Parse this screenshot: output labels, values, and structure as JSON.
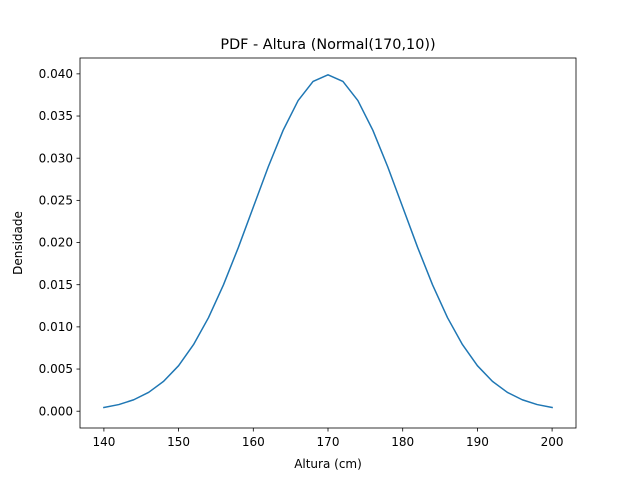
{
  "chart_data": {
    "type": "line",
    "title": "PDF - Altura (Normal(170,10))",
    "xlabel": "Altura (cm)",
    "ylabel": "Densidade",
    "xlim": [
      136.8,
      203.2
    ],
    "ylim": [
      -0.00199,
      0.04188
    ],
    "xticks": [
      140,
      150,
      160,
      170,
      180,
      190,
      200
    ],
    "xtick_labels": [
      "140",
      "150",
      "160",
      "170",
      "180",
      "190",
      "200"
    ],
    "yticks": [
      0.0,
      0.005,
      0.01,
      0.015,
      0.02,
      0.025,
      0.03,
      0.035,
      0.04
    ],
    "ytick_labels": [
      "0.000",
      "0.005",
      "0.010",
      "0.015",
      "0.020",
      "0.025",
      "0.030",
      "0.035",
      "0.040"
    ],
    "grid": false,
    "legend": "none",
    "series": [
      {
        "color": "#1f77b4",
        "x": [
          140,
          142,
          144,
          146,
          148,
          150,
          152,
          154,
          156,
          158,
          160,
          162,
          164,
          166,
          168,
          170,
          172,
          174,
          176,
          178,
          180,
          182,
          184,
          186,
          188,
          190,
          192,
          194,
          196,
          198,
          200
        ],
        "y": [
          0.00044,
          0.00079,
          0.00136,
          0.00224,
          0.00355,
          0.0054,
          0.0079,
          0.01109,
          0.01497,
          0.01942,
          0.0242,
          0.02897,
          0.03332,
          0.03683,
          0.0391,
          0.03989,
          0.0391,
          0.03683,
          0.03332,
          0.02897,
          0.0242,
          0.01942,
          0.01497,
          0.01109,
          0.0079,
          0.0054,
          0.00355,
          0.00224,
          0.00136,
          0.00079,
          0.00044
        ]
      }
    ]
  }
}
